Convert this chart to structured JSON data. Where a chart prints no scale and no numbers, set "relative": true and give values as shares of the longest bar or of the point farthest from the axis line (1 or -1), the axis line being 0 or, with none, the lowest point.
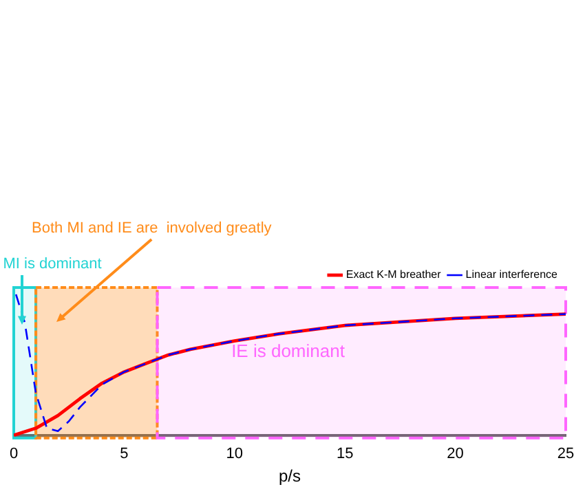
{
  "chart_data": {
    "type": "line",
    "relative": true,
    "xlabel": "p/s",
    "xlim": [
      0,
      25
    ],
    "xticks": [
      0,
      5,
      10,
      15,
      20,
      25
    ],
    "legend": "top right",
    "marker": "none",
    "series": [
      {
        "name": "Exact K-M breather",
        "color": "#ff0000",
        "line_style": "solid",
        "x": [
          0,
          1,
          2,
          3,
          4,
          5,
          6,
          7,
          8,
          10,
          12,
          15,
          20,
          25
        ],
        "values": [
          0,
          0.05,
          0.14,
          0.26,
          0.37,
          0.45,
          0.51,
          0.57,
          0.61,
          0.67,
          0.72,
          0.78,
          0.83,
          0.86
        ]
      },
      {
        "name": "Linear interference",
        "color": "#0000ff",
        "line_style": "dashed",
        "x": [
          0.1,
          0.5,
          1,
          1.5,
          2,
          2.5,
          3,
          4,
          5,
          6,
          7,
          8,
          10,
          12,
          15,
          20,
          25
        ],
        "values": [
          1,
          0.8,
          0.3,
          0.05,
          0.03,
          0.1,
          0.2,
          0.36,
          0.45,
          0.51,
          0.57,
          0.61,
          0.67,
          0.72,
          0.78,
          0.83,
          0.86
        ]
      }
    ],
    "bands": [
      {
        "axis": "x",
        "from": 0,
        "to": 1,
        "label": "MI is dominant",
        "color": "#22d3d3"
      },
      {
        "axis": "x",
        "from": 1,
        "to": 6.5,
        "label": "Both MI and IE are  involved greatly",
        "color": "#ff8c1a"
      },
      {
        "axis": "x",
        "from": 6.5,
        "to": 25,
        "label": "IE is dominant",
        "color": "#ff66ff"
      }
    ]
  }
}
